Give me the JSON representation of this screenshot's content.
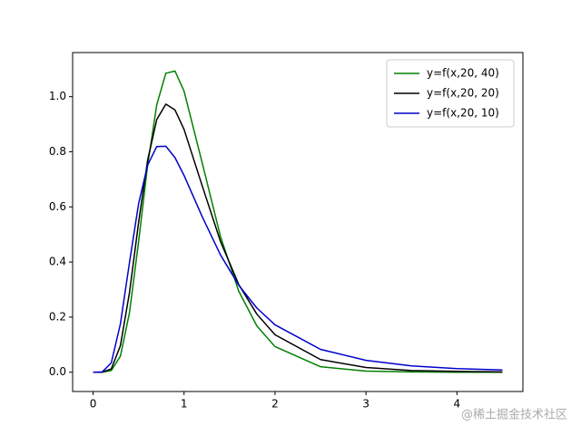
{
  "chart_data": {
    "type": "line",
    "x": [
      0,
      0.1,
      0.2,
      0.3,
      0.4,
      0.5,
      0.6,
      0.7,
      0.8,
      0.9,
      1.0,
      1.2,
      1.4,
      1.6,
      1.8,
      2.0,
      2.5,
      3.0,
      3.5,
      4.0,
      4.5
    ],
    "series": [
      {
        "name": "y=f(x,20, 40)",
        "color": "#008000",
        "values": [
          0,
          0,
          0.006,
          0.058,
          0.216,
          0.473,
          0.752,
          0.971,
          1.085,
          1.093,
          1.02,
          0.759,
          0.493,
          0.295,
          0.168,
          0.093,
          0.02,
          0.004,
          0.001,
          0,
          0
        ]
      },
      {
        "name": "y=f(x,20, 20)",
        "color": "#000000",
        "values": [
          0,
          0,
          0.012,
          0.096,
          0.289,
          0.543,
          0.77,
          0.917,
          0.973,
          0.952,
          0.881,
          0.676,
          0.475,
          0.319,
          0.211,
          0.136,
          0.046,
          0.017,
          0.006,
          0.003,
          0.001
        ]
      },
      {
        "name": "y=f(x,20, 10)",
        "color": "#0000cc",
        "values": [
          0,
          0.001,
          0.034,
          0.175,
          0.398,
          0.611,
          0.752,
          0.819,
          0.82,
          0.779,
          0.714,
          0.564,
          0.426,
          0.316,
          0.233,
          0.172,
          0.083,
          0.043,
          0.023,
          0.013,
          0.008
        ]
      }
    ],
    "xlim": [
      -0.225,
      4.725
    ],
    "xticks": [
      0,
      1,
      2,
      3,
      4
    ],
    "ylim": [
      -0.07,
      1.16
    ],
    "yticks": [
      {
        "value": 0,
        "label": "0.0"
      },
      {
        "value": 0.2,
        "label": "0.2"
      },
      {
        "value": 0.4,
        "label": "0.4"
      },
      {
        "value": 0.6,
        "label": "0.6"
      },
      {
        "value": 0.8,
        "label": "0.8"
      },
      {
        "value": 1.0,
        "label": "1.0"
      }
    ],
    "legend": "upper-right",
    "watermark": "@稀土掘金技术社区"
  }
}
